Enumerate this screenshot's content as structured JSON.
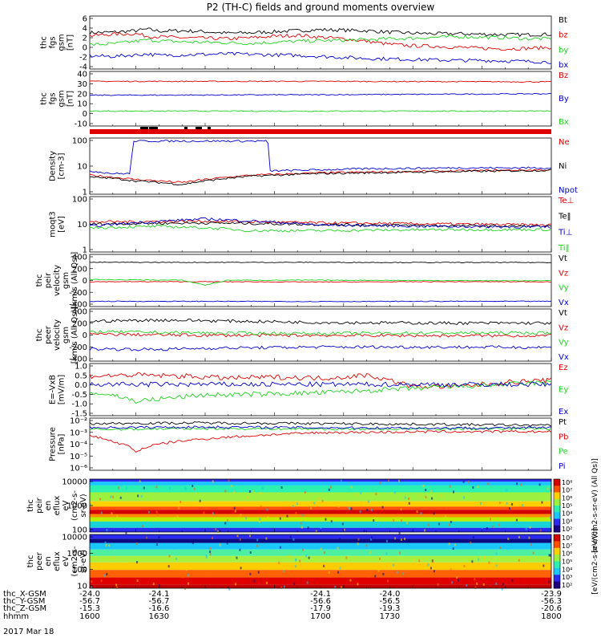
{
  "title": "P2 (TH-C) fields and ground moments overview",
  "date_label": "2017 Mar 18",
  "colors": {
    "black": "#000000",
    "red": "#e00000",
    "green": "#1fd41f",
    "blue": "#0000cc"
  },
  "chart_data": [
    {
      "id": "fgs",
      "type": "line",
      "ylabel": [
        "thc",
        "fgs",
        "gsm",
        "[nT]"
      ],
      "ylim": [
        -4,
        6.5
      ],
      "yticks": [
        "6",
        "4",
        "2",
        "0",
        "-2",
        "-4"
      ],
      "series": [
        {
          "name": "Bt",
          "color": "black",
          "x": [
            1600,
            1610,
            1620,
            1625,
            1630,
            1640,
            1650,
            1660,
            1670,
            1680,
            1690,
            1700,
            1710,
            1720,
            1730,
            1740,
            1750,
            1760,
            1770,
            1780,
            1790,
            1800
          ],
          "y": [
            3.2,
            3.3,
            3.6,
            3.9,
            3.5,
            3.6,
            3.4,
            3.1,
            3.2,
            3.4,
            3.6,
            3.8,
            3.7,
            3.6,
            3.3,
            3.1,
            3.0,
            3.0,
            2.9,
            2.8,
            2.8,
            2.9
          ]
        },
        {
          "name": "bz",
          "color": "red",
          "x": [
            1600,
            1610,
            1620,
            1625,
            1630,
            1640,
            1650,
            1660,
            1670,
            1680,
            1690,
            1700,
            1710,
            1720,
            1730,
            1740,
            1750,
            1760,
            1770,
            1780,
            1790,
            1800
          ],
          "y": [
            2.6,
            2.9,
            3.0,
            2.5,
            2.4,
            2.2,
            2.1,
            2.0,
            2.2,
            2.5,
            2.7,
            2.3,
            2.0,
            1.5,
            0.9,
            0.6,
            0.5,
            0.3,
            0.1,
            0.0,
            0.1,
            0.3
          ]
        },
        {
          "name": "by",
          "color": "green",
          "x": [
            1600,
            1610,
            1620,
            1625,
            1630,
            1640,
            1650,
            1660,
            1670,
            1680,
            1690,
            1700,
            1710,
            1720,
            1730,
            1740,
            1750,
            1760,
            1770,
            1780,
            1790,
            1800
          ],
          "y": [
            0.8,
            1.0,
            1.5,
            1.8,
            1.6,
            1.4,
            1.3,
            1.2,
            1.1,
            1.3,
            1.5,
            1.6,
            1.7,
            1.8,
            2.0,
            2.1,
            2.3,
            2.4,
            2.3,
            2.2,
            2.0,
            2.0
          ]
        },
        {
          "name": "bx",
          "color": "blue",
          "x": [
            1600,
            1610,
            1620,
            1625,
            1630,
            1640,
            1650,
            1660,
            1670,
            1680,
            1690,
            1700,
            1710,
            1720,
            1730,
            1740,
            1750,
            1760,
            1770,
            1780,
            1790,
            1800
          ],
          "y": [
            -1.4,
            -1.5,
            -1.2,
            -1.0,
            -1.3,
            -1.2,
            -1.1,
            -1.0,
            -1.1,
            -1.2,
            -1.3,
            -1.5,
            -1.7,
            -1.9,
            -2.0,
            -2.1,
            -2.2,
            -2.3,
            -2.3,
            -2.4,
            -2.5,
            -2.6
          ]
        }
      ],
      "legend": [
        "Bt",
        "bz",
        "by",
        "bx"
      ]
    },
    {
      "id": "fgs2",
      "type": "line",
      "ylabel": [
        "thc",
        "fgs",
        "gsm",
        "[nT]"
      ],
      "ylim": [
        -15,
        40
      ],
      "yticks": [
        "40",
        "30",
        "20",
        "10",
        "0",
        "-10"
      ],
      "series": [
        {
          "name": "Bz",
          "color": "red",
          "x": [
            1600,
            1700,
            1800
          ],
          "y": [
            30,
            30,
            29.5
          ]
        },
        {
          "name": "By",
          "color": "blue",
          "x": [
            1600,
            1700,
            1800
          ],
          "y": [
            16,
            16.5,
            17.5
          ]
        },
        {
          "name": "Bx",
          "color": "green",
          "x": [
            1600,
            1700,
            1800
          ],
          "y": [
            0,
            0,
            0
          ]
        }
      ],
      "legend": [
        "Bz",
        "By",
        "Bx"
      ]
    },
    {
      "id": "density",
      "type": "line",
      "log": true,
      "ylabel": [
        "Density",
        "[cm-3]"
      ],
      "ylim": [
        1,
        200
      ],
      "yticks": [
        "100",
        "10",
        "1"
      ],
      "series": [
        {
          "name": "Ne",
          "color": "red",
          "x": [
            1600,
            1610,
            1620,
            1630,
            1640,
            1650,
            1660,
            1670,
            1680,
            1690,
            1700,
            1720,
            1740,
            1760,
            1780,
            1800
          ],
          "y": [
            6,
            5,
            4,
            3.5,
            3,
            4,
            5,
            6,
            6.5,
            7,
            7.5,
            8,
            8.5,
            9,
            9.5,
            10
          ]
        },
        {
          "name": "Ni",
          "color": "black",
          "x": [
            1600,
            1610,
            1620,
            1630,
            1640,
            1650,
            1660,
            1670,
            1680,
            1690,
            1700,
            1720,
            1740,
            1760,
            1780,
            1800
          ],
          "y": [
            5,
            4.5,
            3.5,
            3,
            2.5,
            3.5,
            4.5,
            5.5,
            6,
            6.5,
            7,
            7.5,
            8,
            8.5,
            9,
            9.5
          ]
        },
        {
          "name": "Npot",
          "color": "blue",
          "x": [
            1600,
            1610,
            1618,
            1619,
            1630,
            1650,
            1660,
            1677,
            1678,
            1700,
            1720,
            1740,
            1760,
            1780,
            1800
          ],
          "y": [
            9,
            7,
            7,
            150,
            150,
            150,
            150,
            150,
            9,
            10,
            11,
            11.5,
            12,
            12,
            12
          ]
        }
      ],
      "legend": [
        "Ne",
        "Ni",
        "Npot"
      ]
    },
    {
      "id": "temp",
      "type": "line",
      "log": true,
      "ylabel": [
        "moqt3",
        "[eV]"
      ],
      "ylim": [
        1,
        300
      ],
      "yticks": [
        "100",
        "10",
        "1"
      ],
      "series": [
        {
          "name": "Te⊥",
          "color": "red",
          "x": [
            1600,
            1650,
            1700,
            1750,
            1800
          ],
          "y": [
            22,
            24,
            20,
            18,
            16
          ]
        },
        {
          "name": "Te‖",
          "color": "black",
          "x": [
            1600,
            1650,
            1700,
            1750,
            1800
          ],
          "y": [
            18,
            20,
            17,
            15,
            14
          ]
        },
        {
          "name": "Ti⊥",
          "color": "blue",
          "x": [
            1600,
            1650,
            1700,
            1750,
            1800
          ],
          "y": [
            14,
            30,
            16,
            14,
            13
          ]
        },
        {
          "name": "Ti‖",
          "color": "green",
          "x": [
            1600,
            1630,
            1650,
            1670,
            1700,
            1750,
            1800
          ],
          "y": [
            12,
            14,
            12,
            9,
            9,
            10,
            10
          ]
        }
      ],
      "legend": [
        "Te⊥",
        "Te‖",
        "Ti⊥",
        "Ti‖"
      ]
    },
    {
      "id": "peirvel",
      "type": "line",
      "ylabel": [
        "thc",
        "peir",
        "velocity",
        "gsm",
        "[km/s (All Qs)]"
      ],
      "ylim": [
        -400,
        450
      ],
      "yticks": [
        "400",
        "200",
        "0",
        "-200",
        "-400"
      ],
      "series": [
        {
          "name": "Vt",
          "color": "black",
          "x": [
            1600,
            1650,
            1700,
            1750,
            1800
          ],
          "y": [
            320,
            320,
            320,
            318,
            318
          ]
        },
        {
          "name": "Vz",
          "color": "red",
          "x": [
            1600,
            1650,
            1700,
            1750,
            1800
          ],
          "y": [
            5,
            5,
            0,
            5,
            5
          ]
        },
        {
          "name": "Vy",
          "color": "green",
          "x": [
            1600,
            1640,
            1650,
            1660,
            1700,
            1750,
            1800
          ],
          "y": [
            40,
            30,
            -50,
            30,
            30,
            25,
            20
          ]
        },
        {
          "name": "Vx",
          "color": "blue",
          "x": [
            1600,
            1650,
            1700,
            1750,
            1800
          ],
          "y": [
            -315,
            -315,
            -318,
            -315,
            -315
          ]
        }
      ],
      "legend": [
        "Vt",
        "Vz",
        "Vy",
        "Vx"
      ]
    },
    {
      "id": "peervel",
      "type": "line",
      "ylabel": [
        "thc",
        "peer",
        "velocity",
        "gsm",
        "[km/s (All Qs)]"
      ],
      "ylim": [
        -400,
        450
      ],
      "yticks": [
        "400",
        "200",
        "0",
        "-200",
        "-400"
      ],
      "series": [
        {
          "name": "Vt",
          "color": "black",
          "x": [
            1600,
            1630,
            1650,
            1700,
            1750,
            1800
          ],
          "y": [
            250,
            270,
            260,
            230,
            220,
            220
          ]
        },
        {
          "name": "Vz",
          "color": "red",
          "x": [
            1600,
            1650,
            1700,
            1750,
            1800
          ],
          "y": [
            40,
            20,
            20,
            15,
            15
          ]
        },
        {
          "name": "Vy",
          "color": "green",
          "x": [
            1600,
            1650,
            1700,
            1750,
            1800
          ],
          "y": [
            80,
            60,
            50,
            60,
            60
          ]
        },
        {
          "name": "Vx",
          "color": "blue",
          "x": [
            1600,
            1630,
            1650,
            1700,
            1750,
            1800
          ],
          "y": [
            -200,
            -210,
            -190,
            -170,
            -170,
            -175
          ]
        }
      ],
      "legend": [
        "Vt",
        "Vz",
        "Vy",
        "Vx"
      ]
    },
    {
      "id": "efield",
      "type": "line",
      "ylabel": [
        "E=-VxB",
        "[mV/m]"
      ],
      "ylim": [
        -1.5,
        1.0
      ],
      "yticks": [
        "1.0",
        "0.5",
        "0.0",
        "-0.5",
        "-1.0",
        "-1.5"
      ],
      "series": [
        {
          "name": "Ez",
          "color": "red",
          "x": [
            1600,
            1620,
            1640,
            1660,
            1680,
            1700,
            1710,
            1720,
            1730,
            1740,
            1760,
            1780,
            1800
          ],
          "y": [
            0.4,
            0.45,
            0.4,
            0.3,
            0.35,
            0.3,
            0.35,
            0.45,
            0.2,
            -0.1,
            -0.1,
            0.1,
            0.2
          ]
        },
        {
          "name": "Ey",
          "color": "green",
          "x": [
            1600,
            1610,
            1620,
            1630,
            1640,
            1650,
            1660,
            1680,
            1700,
            1720,
            1740,
            1760,
            1780,
            1800
          ],
          "y": [
            -0.4,
            -0.5,
            -0.8,
            -0.7,
            -0.6,
            -0.5,
            -0.5,
            -0.45,
            -0.4,
            -0.3,
            -0.2,
            -0.1,
            0.0,
            0.1
          ]
        },
        {
          "name": "Ex",
          "color": "blue",
          "x": [
            1600,
            1700,
            1800
          ],
          "y": [
            0,
            0,
            0
          ]
        }
      ],
      "legend": [
        "Ez",
        "Ey",
        "Ex"
      ]
    },
    {
      "id": "pressure",
      "type": "line",
      "log": true,
      "ylabel": [
        "Pressure",
        "[nPa]"
      ],
      "ylim": [
        1e-06,
        0.1
      ],
      "yticks": [
        "10⁻²",
        "10⁻³",
        "10⁻⁴",
        "10⁻⁵",
        "10⁻⁶"
      ],
      "series": [
        {
          "name": "Pt",
          "color": "black",
          "x": [
            1600,
            1650,
            1700,
            1750,
            1800
          ],
          "y": [
            0.03,
            0.035,
            0.03,
            0.025,
            0.02
          ]
        },
        {
          "name": "Pb",
          "color": "red",
          "x": [
            1600,
            1610,
            1620,
            1630,
            1650,
            1670,
            1700,
            1750,
            1800
          ],
          "y": [
            0.002,
            0.0005,
            5e-05,
            0.0003,
            0.001,
            0.002,
            0.004,
            0.005,
            0.005
          ]
        },
        {
          "name": "Pe",
          "color": "green",
          "x": [
            1600,
            1650,
            1700,
            1750,
            1800
          ],
          "y": [
            0.008,
            0.01,
            0.009,
            0.009,
            0.01
          ]
        },
        {
          "name": "Pi",
          "color": "blue",
          "x": [
            1600,
            1650,
            1700,
            1750,
            1800
          ],
          "y": [
            0.012,
            0.014,
            0.012,
            0.011,
            0.012
          ]
        }
      ],
      "legend": [
        "Pt",
        "Pb",
        "Pe",
        "Pi"
      ]
    },
    {
      "id": "peir_eflux",
      "type": "heatmap",
      "ylabel": [
        "thc",
        "peir",
        "en",
        "eflux",
        "eV",
        "(cm2-s-",
        "sr-eV)"
      ],
      "yticks": [
        "10000",
        "1000",
        "100"
      ],
      "colorbar": {
        "label": "[eV/(cm2-s-sr-eV) (All Qs)]",
        "ticks": [
          "10⁸",
          "10⁷",
          "10⁶",
          "10⁵",
          "10⁴",
          "10³",
          "10²"
        ]
      }
    },
    {
      "id": "peer_eflux",
      "type": "heatmap",
      "ylabel": [
        "thc",
        "peer",
        "en",
        "eflux",
        "eV",
        "(cm2-s-",
        "sr-eV)"
      ],
      "yticks": [
        "10000",
        "1000",
        "100",
        "10"
      ],
      "colorbar": {
        "label": "[eV/(cm2-s-sr-eV)]",
        "ticks": [
          "10⁸",
          "10⁷",
          "10⁶",
          "10⁵",
          "10⁴",
          "10³",
          "10²"
        ]
      }
    }
  ],
  "xaxis": {
    "row_labels": [
      "thc_X-GSM",
      "thc_Y-GSM",
      "thc_Z-GSM",
      "hhmm"
    ],
    "columns": [
      {
        "x": 1600,
        "values": [
          "-24.0",
          "-56.7",
          "-15.3",
          "1600"
        ]
      },
      {
        "x": 1630,
        "values": [
          "-24.1",
          "-56.7",
          "-16.6",
          "1630"
        ]
      },
      {
        "x": 1700,
        "values": [
          "-24.1",
          "-56.6",
          "-17.9",
          "1700"
        ]
      },
      {
        "x": 1730,
        "values": [
          "-24.0",
          "-56.5",
          "-19.3",
          "1730"
        ]
      },
      {
        "x": 1800,
        "values": [
          "-23.9",
          "-56.3",
          "-20.6",
          "1800"
        ]
      }
    ]
  }
}
